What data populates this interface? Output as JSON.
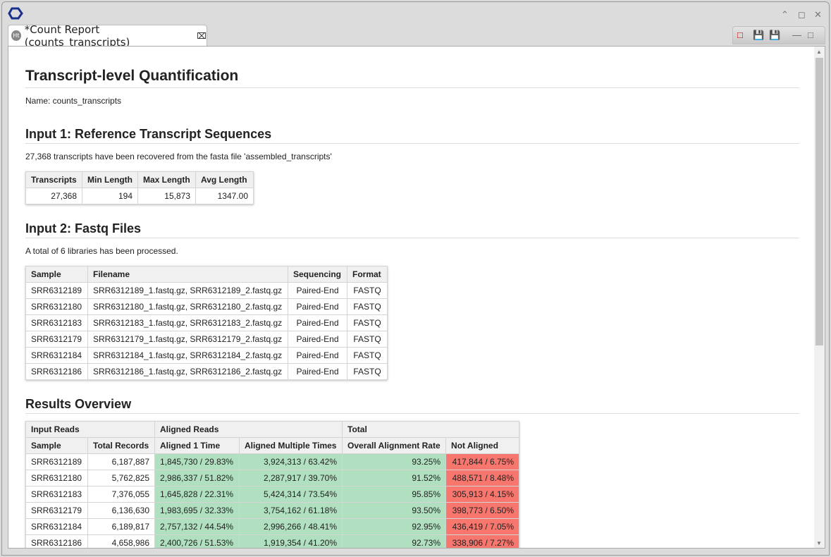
{
  "window": {
    "tab_title": "*Count Report (counts_transcripts)",
    "tab_icon": "Ht"
  },
  "report": {
    "title": "Transcript-level Quantification",
    "name_line": "Name: counts_transcripts",
    "input1": {
      "heading": "Input 1: Reference Transcript Sequences",
      "text": "27,368 transcripts have been recovered from the fasta file 'assembled_transcripts'",
      "headers": [
        "Transcripts",
        "Min Length",
        "Max Length",
        "Avg Length"
      ],
      "row": [
        "27,368",
        "194",
        "15,873",
        "1347.00"
      ]
    },
    "input2": {
      "heading": "Input 2: Fastq Files",
      "text": "A total of 6 libraries has been processed.",
      "headers": [
        "Sample",
        "Filename",
        "Sequencing",
        "Format"
      ],
      "rows": [
        [
          "SRR6312189",
          "SRR6312189_1.fastq.gz, SRR6312189_2.fastq.gz",
          "Paired-End",
          "FASTQ"
        ],
        [
          "SRR6312180",
          "SRR6312180_1.fastq.gz, SRR6312180_2.fastq.gz",
          "Paired-End",
          "FASTQ"
        ],
        [
          "SRR6312183",
          "SRR6312183_1.fastq.gz, SRR6312183_2.fastq.gz",
          "Paired-End",
          "FASTQ"
        ],
        [
          "SRR6312179",
          "SRR6312179_1.fastq.gz, SRR6312179_2.fastq.gz",
          "Paired-End",
          "FASTQ"
        ],
        [
          "SRR6312184",
          "SRR6312184_1.fastq.gz, SRR6312184_2.fastq.gz",
          "Paired-End",
          "FASTQ"
        ],
        [
          "SRR6312186",
          "SRR6312186_1.fastq.gz, SRR6312186_2.fastq.gz",
          "Paired-End",
          "FASTQ"
        ]
      ]
    },
    "results": {
      "heading": "Results Overview",
      "groups": [
        "Input Reads",
        "Aligned Reads",
        "Total"
      ],
      "headers": [
        "Sample",
        "Total Records",
        "Aligned 1 Time",
        "Aligned Multiple Times",
        "Overall Alignment Rate",
        "Not Aligned"
      ],
      "rows": [
        [
          "SRR6312189",
          "6,187,887",
          "1,845,730 / 29.83%",
          "3,924,313 / 63.42%",
          "93.25%",
          "417,844 / 6.75%"
        ],
        [
          "SRR6312180",
          "5,762,825",
          "2,986,337 / 51.82%",
          "2,287,917 / 39.70%",
          "91.52%",
          "488,571 / 8.48%"
        ],
        [
          "SRR6312183",
          "7,376,055",
          "1,645,828 / 22.31%",
          "5,424,314 / 73.54%",
          "95.85%",
          "305,913 / 4.15%"
        ],
        [
          "SRR6312179",
          "6,136,630",
          "1,983,695 / 32.33%",
          "3,754,162 / 61.18%",
          "93.50%",
          "398,773 / 6.50%"
        ],
        [
          "SRR6312184",
          "6,189,817",
          "2,757,132 / 44.54%",
          "2,996,266 / 48.41%",
          "92.95%",
          "436,419 / 7.05%"
        ],
        [
          "SRR6312186",
          "4,658,986",
          "2,400,726 / 51.53%",
          "1,919,354 / 41.20%",
          "92.73%",
          "338,906 / 7.27%"
        ]
      ],
      "colors": {
        "aligned": "#b0e0c0",
        "not_aligned": "#f7766e"
      }
    }
  }
}
